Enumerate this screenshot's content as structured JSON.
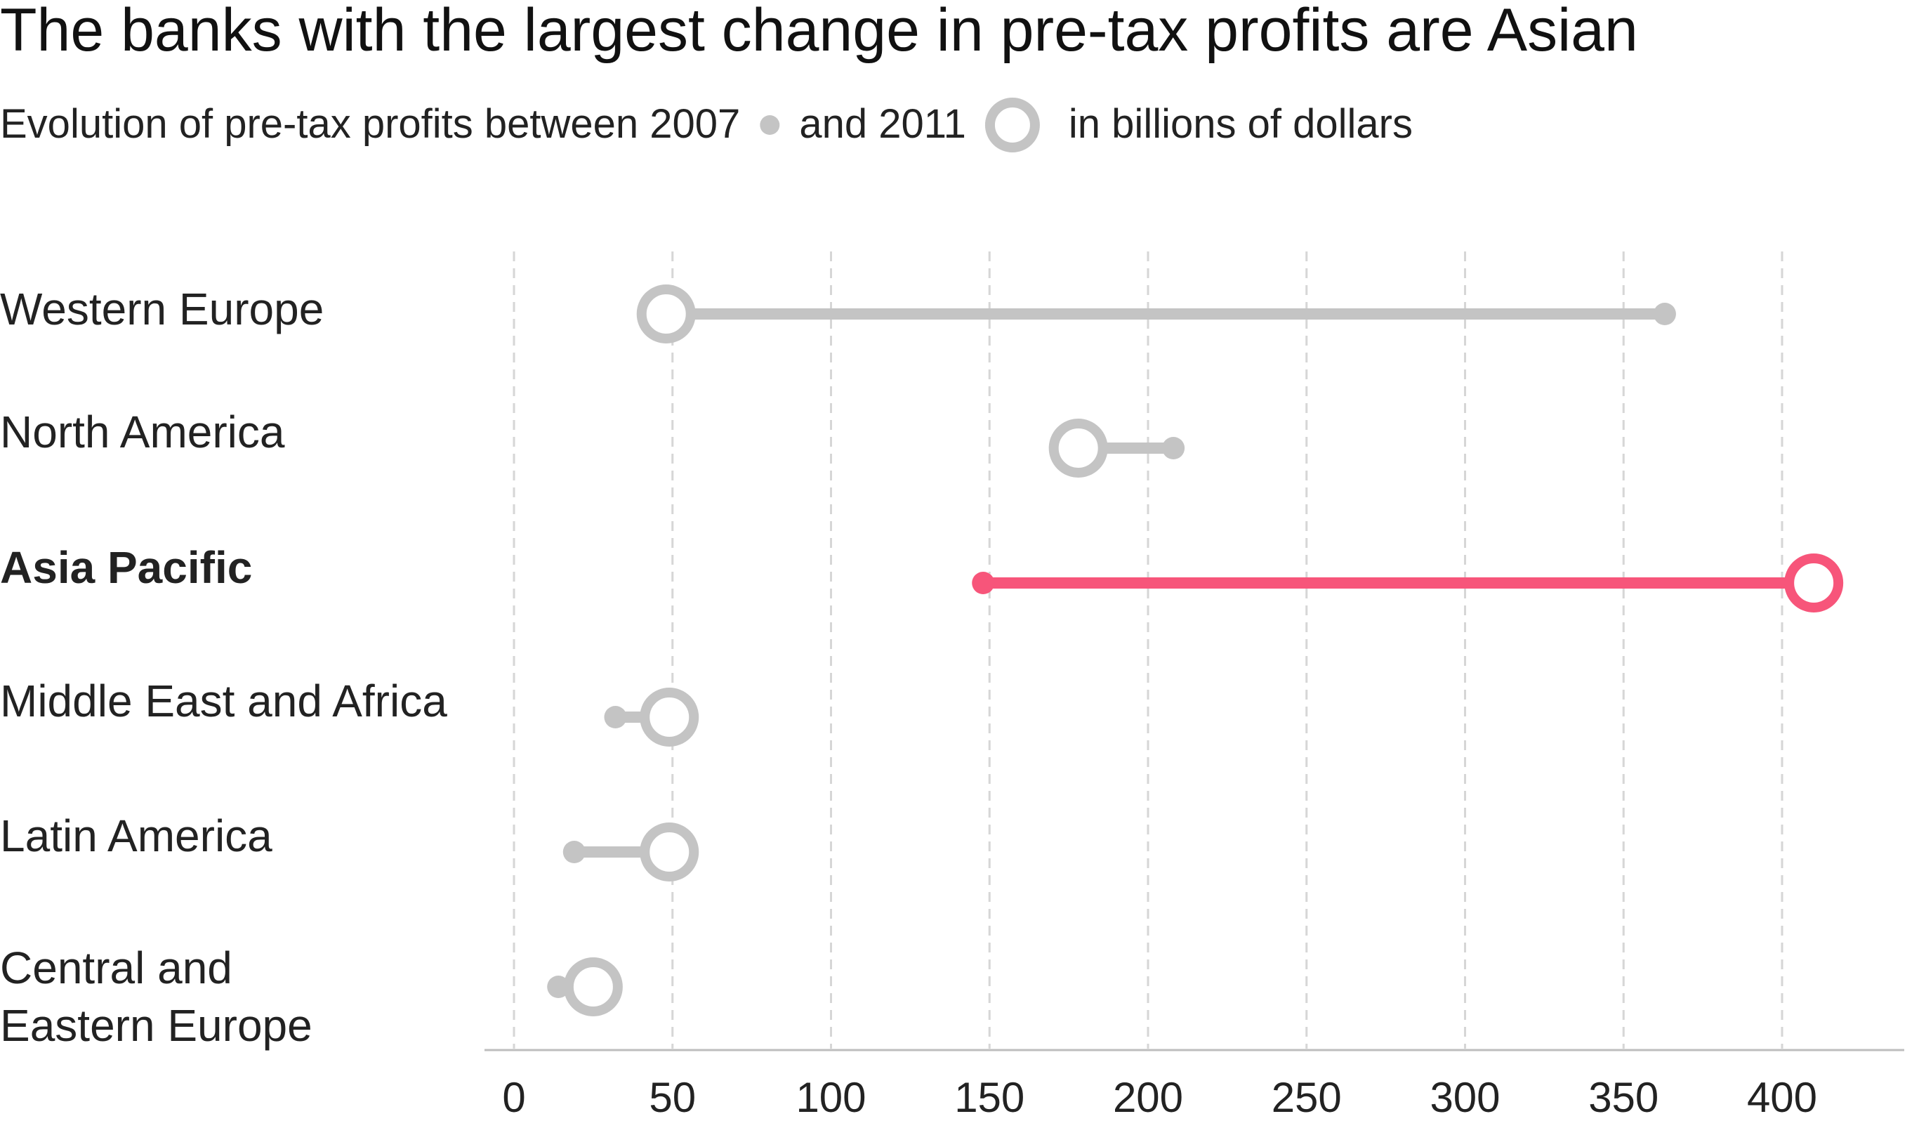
{
  "colors": {
    "neutral": "#c4c4c4",
    "highlight": "#f7557a",
    "text": "#222222",
    "grid": "#d6d6d6"
  },
  "chart_data": {
    "type": "dumbbell",
    "title": "The banks with the largest change in pre-tax profits are Asian",
    "subtitle": {
      "part1": "Evolution of pre-tax profits between 2007",
      "part2": "and 2011",
      "part3": "in billions of dollars"
    },
    "xlim": [
      0,
      420
    ],
    "xticks": [
      "0",
      "50",
      "100",
      "150",
      "200",
      "250",
      "300",
      "350",
      "400"
    ],
    "xtick_values": [
      0,
      50,
      100,
      150,
      200,
      250,
      300,
      350,
      400
    ],
    "series_names": [
      "2007",
      "2011"
    ],
    "highlight_category": "Asia Pacific",
    "categories": [
      {
        "name": "Western Europe",
        "lines": [
          "Western Europe"
        ],
        "v2007": 363,
        "v2011": 48,
        "highlight": false
      },
      {
        "name": "North America",
        "lines": [
          "North America"
        ],
        "v2007": 208,
        "v2011": 178,
        "highlight": false
      },
      {
        "name": "Asia Pacific",
        "lines": [
          "Asia Pacific"
        ],
        "v2007": 148,
        "v2011": 410,
        "highlight": true
      },
      {
        "name": "Middle East and Africa",
        "lines": [
          "Middle East and Africa"
        ],
        "v2007": 32,
        "v2011": 49,
        "highlight": false
      },
      {
        "name": "Latin America",
        "lines": [
          "Latin America"
        ],
        "v2007": 19,
        "v2011": 49,
        "highlight": false
      },
      {
        "name": "Central and Eastern Europe",
        "lines": [
          "Central and",
          "Eastern Europe"
        ],
        "v2007": 14,
        "v2011": 25,
        "highlight": false
      }
    ]
  }
}
